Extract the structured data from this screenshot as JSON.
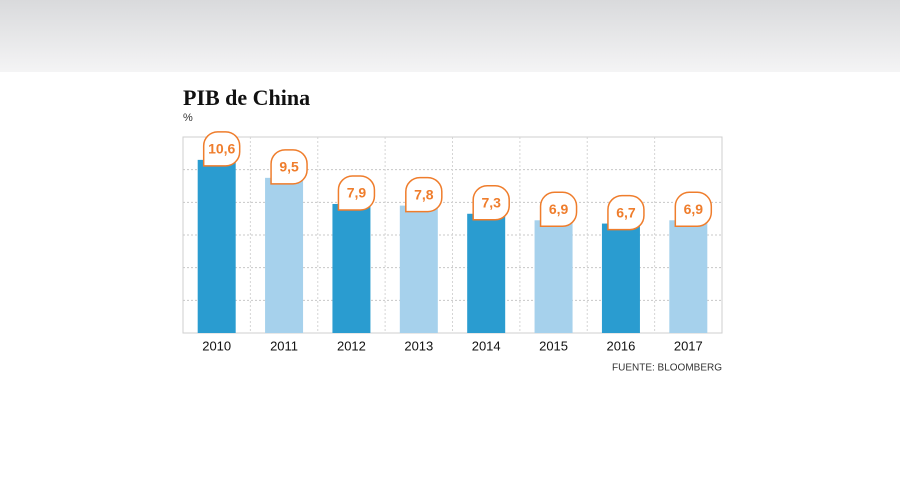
{
  "chart_data": {
    "type": "bar",
    "title": "PIB de China",
    "unit": "%",
    "categories": [
      "2010",
      "2011",
      "2012",
      "2013",
      "2014",
      "2015",
      "2016",
      "2017"
    ],
    "values": [
      10.6,
      9.5,
      7.9,
      7.8,
      7.3,
      6.9,
      6.7,
      6.9
    ],
    "value_labels": [
      "10,6",
      "9,5",
      "7,9",
      "7,8",
      "7,3",
      "6,9",
      "6,7",
      "6,9"
    ],
    "colors": [
      "#2a9cd0",
      "#a6d1ec",
      "#2a9cd0",
      "#a6d1ec",
      "#2a9cd0",
      "#a6d1ec",
      "#2a9cd0",
      "#a6d1ec"
    ],
    "label_color": "#ef7d2c",
    "ylim": [
      0,
      12
    ],
    "grid_values": [
      2,
      4,
      6,
      8,
      10
    ],
    "grid": true,
    "source": "FUENTE: BLOOMBERG"
  }
}
